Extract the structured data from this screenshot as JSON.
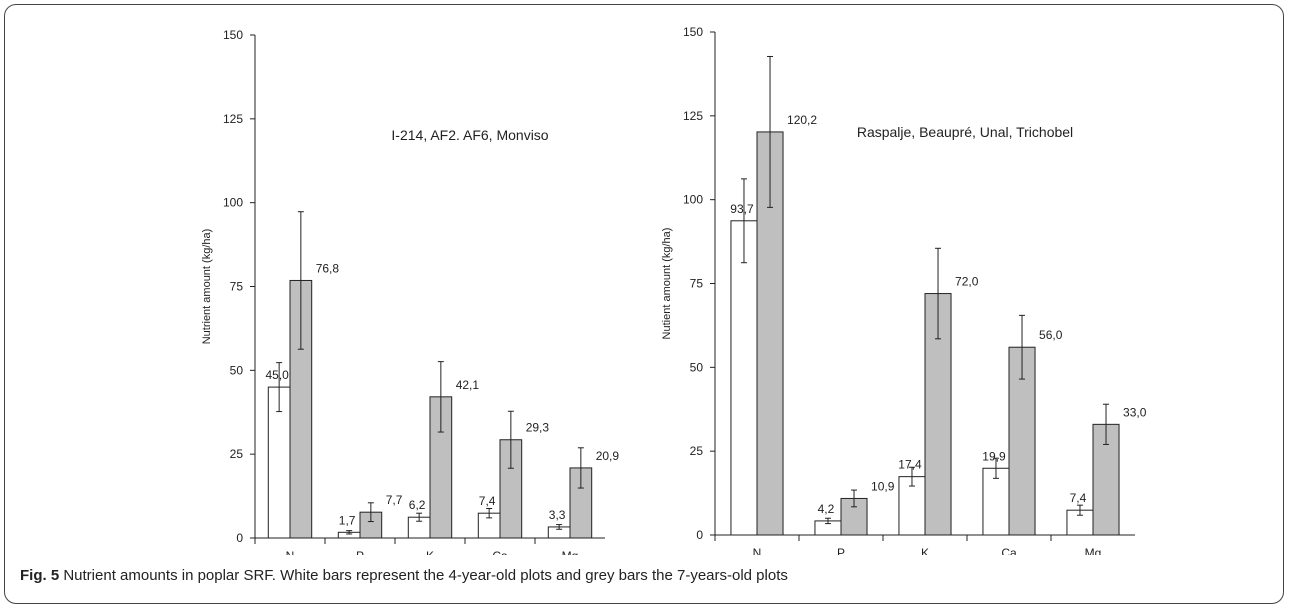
{
  "caption": {
    "label": "Fig. 5",
    "text": "Nutrient amounts in poplar SRF. White bars represent the 4-year-old plots and grey bars the 7-years-old plots"
  },
  "colors": {
    "bar_4yr": "#ffffff",
    "bar_7yr": "#bfbfbf",
    "stroke": "#222222"
  },
  "chart_data": [
    {
      "type": "bar",
      "subtitle": "I-214, AF2. AF6, Monviso",
      "ylabel": "Nutrient amount (kg/ha)",
      "categories": [
        "N",
        "P",
        "K",
        "Ca",
        "Mg"
      ],
      "ylim": [
        0,
        150
      ],
      "yticks": [
        0,
        25,
        50,
        75,
        100,
        125,
        150
      ],
      "series": [
        {
          "values": [
            45.0,
            1.7,
            6.2,
            7.4,
            3.3
          ],
          "labels": [
            "45,0",
            "1,7",
            "6,2",
            "7,4",
            "3,3"
          ],
          "errors": [
            7.3,
            0.5,
            1.2,
            1.4,
            0.7
          ]
        },
        {
          "values": [
            76.8,
            7.7,
            42.1,
            29.3,
            20.9
          ],
          "labels": [
            "76,8",
            "7,7",
            "42,1",
            "29,3",
            "20,9"
          ],
          "errors": [
            20.5,
            2.8,
            10.5,
            8.5,
            6.0
          ]
        }
      ]
    },
    {
      "type": "bar",
      "subtitle": "Raspalje, Beaupré, Unal, Trichobel",
      "ylabel": "Nutient amount (kg/ha)",
      "categories": [
        "N",
        "P",
        "K",
        "Ca",
        "Mg"
      ],
      "ylim": [
        0,
        150
      ],
      "yticks": [
        0,
        25,
        50,
        75,
        100,
        125,
        150
      ],
      "series": [
        {
          "values": [
            93.7,
            4.2,
            17.4,
            19.9,
            7.4
          ],
          "labels": [
            "93,7",
            "4,2",
            "17,4",
            "19,9",
            "7,4"
          ],
          "errors": [
            12.5,
            0.8,
            2.8,
            3.0,
            1.5
          ]
        },
        {
          "values": [
            120.2,
            10.9,
            72.0,
            56.0,
            33.0
          ],
          "labels": [
            "120,2",
            "10,9",
            "72,0",
            "56,0",
            "33,0"
          ],
          "errors": [
            22.5,
            2.5,
            13.5,
            9.5,
            6.0
          ]
        }
      ]
    }
  ]
}
